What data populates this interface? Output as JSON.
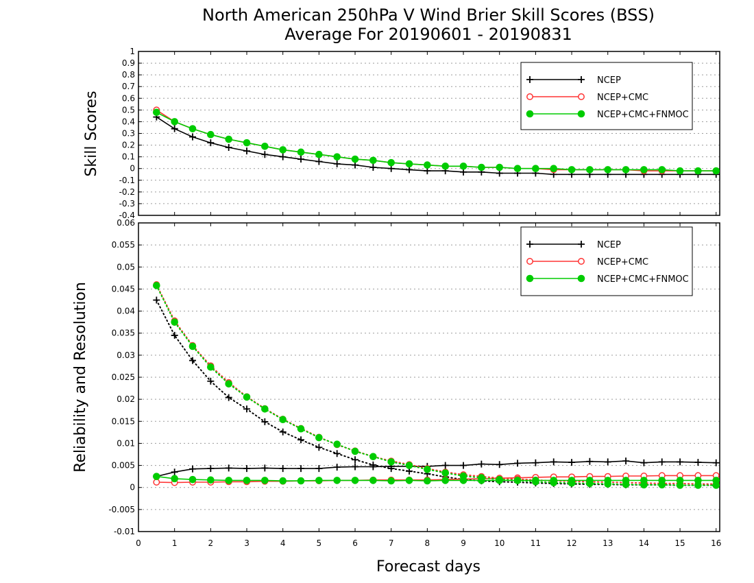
{
  "title_line1": "North American 250hPa V Wind Brier Skill Scores (BSS)",
  "title_line2": "Average For 20190601 - 20190831",
  "chart_data": [
    {
      "type": "line",
      "ylabel": "Skill Scores",
      "xlabel": "Forecast days",
      "xlim": [
        0,
        16.1
      ],
      "ylim": [
        -0.4,
        1
      ],
      "x_ticks": [
        0,
        1,
        2,
        3,
        4,
        5,
        6,
        7,
        8,
        9,
        10,
        11,
        12,
        13,
        14,
        15,
        16
      ],
      "y_ticks": [
        1,
        0.9,
        0.8,
        0.7,
        0.6,
        0.5,
        0.4,
        0.3,
        0.2,
        0.1,
        0,
        -0.1,
        -0.2,
        -0.3,
        -0.4
      ],
      "y_tick_labels": [
        "1",
        "0.9",
        "0.8",
        "0.7",
        "0.6",
        "0.5",
        "0.4",
        "0.3",
        "0.2",
        "0.1",
        "0",
        "-0.1",
        "-0.2",
        "-0.3",
        "-0.4"
      ],
      "grid": "horizontal dotted",
      "legend": "top-right",
      "x": [
        0.5,
        1,
        1.5,
        2,
        2.5,
        3,
        3.5,
        4,
        4.5,
        5,
        5.5,
        6,
        6.5,
        7,
        7.5,
        8,
        8.5,
        9,
        9.5,
        10,
        10.5,
        11,
        11.5,
        12,
        12.5,
        13,
        13.5,
        14,
        14.5,
        15,
        15.5,
        16
      ],
      "series": [
        {
          "name": "NCEP",
          "color": "#000000",
          "marker": "plus",
          "values": [
            0.44,
            0.34,
            0.27,
            0.22,
            0.18,
            0.15,
            0.12,
            0.1,
            0.08,
            0.06,
            0.04,
            0.03,
            0.01,
            0.0,
            -0.01,
            -0.02,
            -0.02,
            -0.03,
            -0.03,
            -0.04,
            -0.04,
            -0.04,
            -0.05,
            -0.05,
            -0.05,
            -0.05,
            -0.05,
            -0.05,
            -0.05,
            -0.05,
            -0.05,
            -0.05
          ]
        },
        {
          "name": "NCEP+CMC",
          "color": "#ff3333",
          "marker": "open-circle",
          "values": [
            0.5,
            0.4,
            0.34,
            0.29,
            0.25,
            0.22,
            0.19,
            0.16,
            0.14,
            0.12,
            0.1,
            0.08,
            0.07,
            0.05,
            0.04,
            0.03,
            0.02,
            0.02,
            0.01,
            0.01,
            0.0,
            0.0,
            -0.01,
            -0.01,
            -0.01,
            -0.01,
            -0.01,
            -0.02,
            -0.02,
            -0.02,
            -0.02,
            -0.02
          ]
        },
        {
          "name": "NCEP+CMC+FNMOC",
          "color": "#00cc00",
          "marker": "filled-circle",
          "values": [
            0.48,
            0.4,
            0.34,
            0.29,
            0.25,
            0.22,
            0.19,
            0.16,
            0.14,
            0.12,
            0.1,
            0.08,
            0.07,
            0.05,
            0.04,
            0.03,
            0.02,
            0.02,
            0.01,
            0.01,
            0.0,
            0.0,
            0.0,
            -0.01,
            -0.01,
            -0.01,
            -0.01,
            -0.01,
            -0.01,
            -0.02,
            -0.02,
            -0.02
          ]
        }
      ]
    },
    {
      "type": "line",
      "ylabel": "Reliability and Resolution",
      "xlabel": "Forecast days",
      "xlim": [
        0,
        16.1
      ],
      "ylim": [
        -0.01,
        0.06
      ],
      "x_ticks": [
        0,
        1,
        2,
        3,
        4,
        5,
        6,
        7,
        8,
        9,
        10,
        11,
        12,
        13,
        14,
        15,
        16
      ],
      "y_ticks": [
        0.06,
        0.055,
        0.05,
        0.045,
        0.04,
        0.035,
        0.03,
        0.025,
        0.02,
        0.015,
        0.01,
        0.005,
        0,
        -0.005,
        -0.01
      ],
      "y_tick_labels": [
        "0.06",
        "0.055",
        "0.05",
        "0.045",
        "0.04",
        "0.035",
        "0.03",
        "0.025",
        "0.02",
        "0.015",
        "0.01",
        "0.005",
        "0",
        "-0.005",
        "-0.01"
      ],
      "grid": "horizontal dotted",
      "legend": "top-right",
      "x": [
        0.5,
        1,
        1.5,
        2,
        2.5,
        3,
        3.5,
        4,
        4.5,
        5,
        5.5,
        6,
        6.5,
        7,
        7.5,
        8,
        8.5,
        9,
        9.5,
        10,
        10.5,
        11,
        11.5,
        12,
        12.5,
        13,
        13.5,
        14,
        14.5,
        15,
        15.5,
        16
      ],
      "series": [
        {
          "name": "NCEP",
          "color": "#000000",
          "marker": "plus",
          "line": "solid",
          "metric": "reliability",
          "values": [
            0.0025,
            0.0035,
            0.0042,
            0.0043,
            0.0044,
            0.0043,
            0.0044,
            0.0043,
            0.0043,
            0.0043,
            0.0046,
            0.0047,
            0.0047,
            0.0048,
            0.0048,
            0.0048,
            0.005,
            0.005,
            0.0053,
            0.0052,
            0.0055,
            0.0056,
            0.0058,
            0.0057,
            0.0059,
            0.0058,
            0.006,
            0.0056,
            0.0058,
            0.0058,
            0.0057,
            0.0056
          ]
        },
        {
          "name": "NCEP",
          "color": "#000000",
          "marker": "plus",
          "line": "dotted",
          "metric": "resolution",
          "values": [
            0.0425,
            0.0345,
            0.0288,
            0.0241,
            0.0204,
            0.0178,
            0.0149,
            0.0126,
            0.0108,
            0.0091,
            0.0077,
            0.0063,
            0.0051,
            0.0043,
            0.0037,
            0.0031,
            0.0024,
            0.0018,
            0.0015,
            0.0013,
            0.0012,
            0.001,
            0.0009,
            0.0008,
            0.0007,
            0.0007,
            0.0006,
            0.0006,
            0.0006,
            0.0005,
            0.0005,
            0.0005
          ]
        },
        {
          "name": "NCEP+CMC",
          "color": "#ff3333",
          "marker": "open-circle",
          "line": "solid",
          "metric": "reliability",
          "values": [
            0.0012,
            0.0011,
            0.0012,
            0.0012,
            0.0013,
            0.0013,
            0.0014,
            0.0014,
            0.0015,
            0.0015,
            0.0016,
            0.0016,
            0.0017,
            0.0017,
            0.0017,
            0.0017,
            0.0018,
            0.0019,
            0.002,
            0.0021,
            0.0022,
            0.0023,
            0.0024,
            0.0024,
            0.0025,
            0.0025,
            0.0026,
            0.0026,
            0.0027,
            0.0027,
            0.0027,
            0.0027
          ]
        },
        {
          "name": "NCEP+CMC",
          "color": "#ff3333",
          "marker": "open-circle",
          "line": "dotted",
          "metric": "resolution",
          "values": [
            0.046,
            0.0378,
            0.0322,
            0.0276,
            0.0238,
            0.0206,
            0.0179,
            0.0155,
            0.0134,
            0.0114,
            0.0097,
            0.0083,
            0.007,
            0.006,
            0.0052,
            0.0043,
            0.0035,
            0.0029,
            0.0025,
            0.0021,
            0.0019,
            0.0017,
            0.0015,
            0.0014,
            0.0013,
            0.0012,
            0.0011,
            0.001,
            0.0009,
            0.0009,
            0.0008,
            0.0008
          ]
        },
        {
          "name": "NCEP+CMC+FNMOC",
          "color": "#00cc00",
          "marker": "filled-circle",
          "line": "solid",
          "metric": "reliability",
          "values": [
            0.0025,
            0.002,
            0.0018,
            0.0017,
            0.0016,
            0.0016,
            0.0016,
            0.0015,
            0.0015,
            0.0016,
            0.0016,
            0.0016,
            0.0016,
            0.0015,
            0.0016,
            0.0015,
            0.0016,
            0.0016,
            0.0016,
            0.0016,
            0.0016,
            0.0016,
            0.0016,
            0.0016,
            0.0016,
            0.0016,
            0.0016,
            0.0016,
            0.0016,
            0.0016,
            0.0016,
            0.0016
          ]
        },
        {
          "name": "NCEP+CMC+FNMOC",
          "color": "#00cc00",
          "marker": "filled-circle",
          "line": "dotted",
          "metric": "resolution",
          "values": [
            0.0458,
            0.0375,
            0.032,
            0.0273,
            0.0235,
            0.0205,
            0.0178,
            0.0154,
            0.0133,
            0.0113,
            0.0098,
            0.0082,
            0.007,
            0.0058,
            0.005,
            0.0041,
            0.0033,
            0.0026,
            0.0022,
            0.0018,
            0.0016,
            0.0013,
            0.0011,
            0.001,
            0.0009,
            0.0008,
            0.0007,
            0.0006,
            0.0006,
            0.0005,
            0.0005,
            0.0005
          ]
        }
      ]
    }
  ]
}
